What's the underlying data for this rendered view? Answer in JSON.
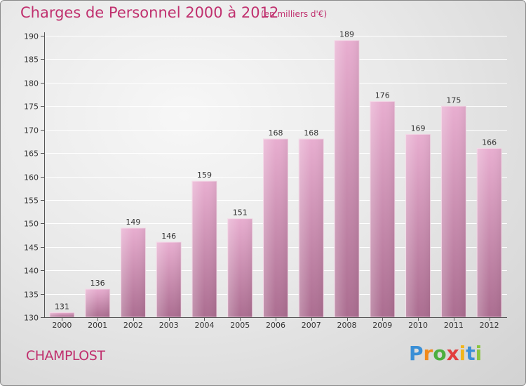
{
  "header": {
    "title": "Charges de Personnel 2000 à 2012",
    "subtitle": "(en milliers d'€)"
  },
  "footer": {
    "commune": "CHAMPLOST",
    "logo_text": "Proxiti"
  },
  "colors": {
    "title": "#c0306e",
    "bar_top": "#e6a8cc",
    "bar_bottom": "#ad6f92",
    "grid": "#ffffff",
    "axis": "#555555"
  },
  "chart_data": {
    "type": "bar",
    "title": "Charges de Personnel 2000 à 2012",
    "subtitle": "(en milliers d'€)",
    "xlabel": "",
    "ylabel": "",
    "categories": [
      "2000",
      "2001",
      "2002",
      "2003",
      "2004",
      "2005",
      "2006",
      "2007",
      "2008",
      "2009",
      "2010",
      "2011",
      "2012"
    ],
    "values": [
      131,
      136,
      149,
      146,
      159,
      151,
      168,
      168,
      189,
      176,
      169,
      175,
      166
    ],
    "ylim": [
      130,
      190
    ],
    "yticks": [
      130,
      135,
      140,
      145,
      150,
      155,
      160,
      165,
      170,
      175,
      180,
      185,
      190
    ],
    "grid": true,
    "legend": "none"
  }
}
